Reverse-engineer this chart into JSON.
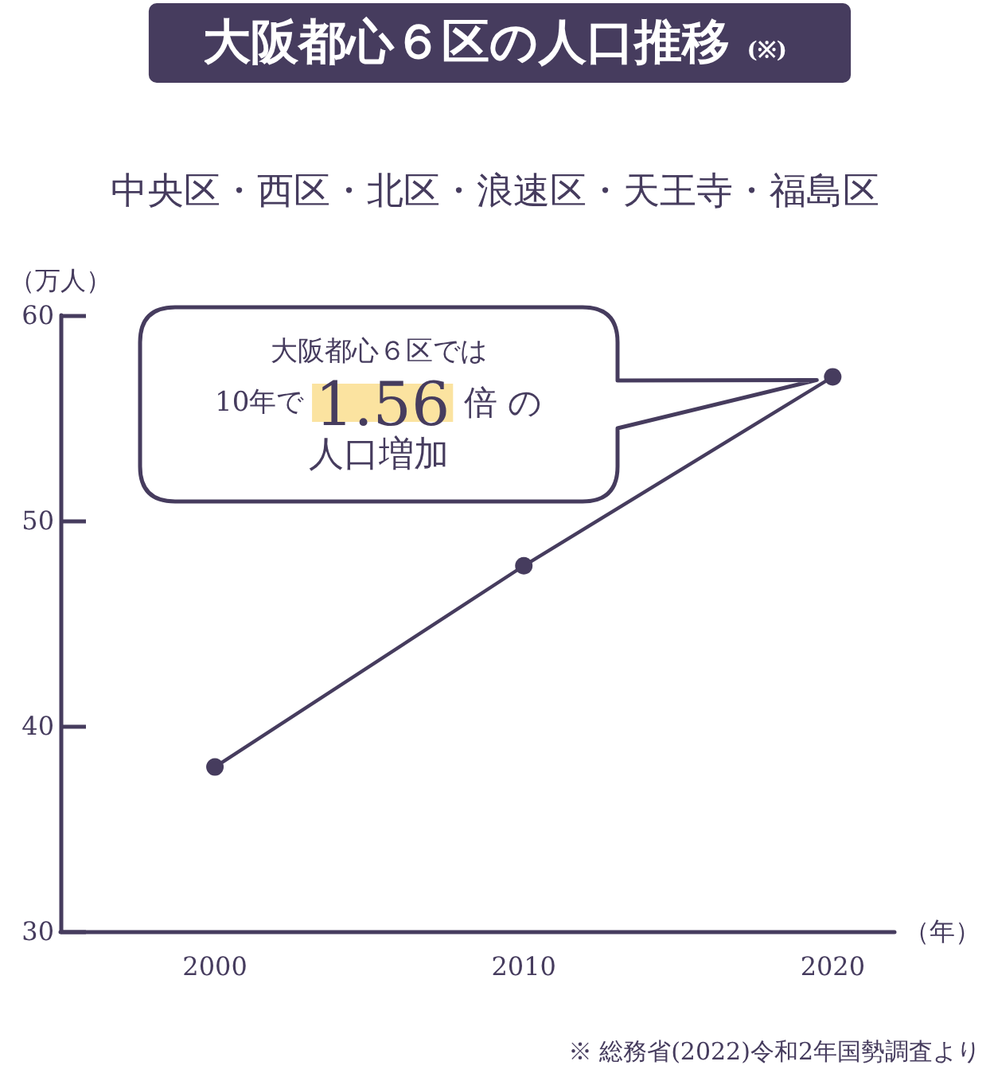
{
  "chart_data": {
    "type": "line",
    "title": "大阪都心６区の人口推移 (※)",
    "subtitle": "中央区・西区・北区・浪速区・天王寺・福島区",
    "xlabel": "（年）",
    "ylabel": "（万人）",
    "x": [
      2000,
      2010,
      2020
    ],
    "values": [
      38.0,
      47.8,
      57.0
    ],
    "color": "#463c5e",
    "marker": "circle",
    "line_style": "solid",
    "grid": false,
    "xlim": [
      1995,
      2022
    ],
    "xticks": [
      2000,
      2010,
      2020
    ],
    "ylim": [
      30,
      60
    ],
    "yticks": [
      30,
      40,
      50,
      60
    ],
    "annotations": [
      "大阪都心６区では",
      "10年で 1.56 倍 の",
      "人口増加",
      "※ 総務省(2022)令和2年国勢調査より"
    ]
  }
}
